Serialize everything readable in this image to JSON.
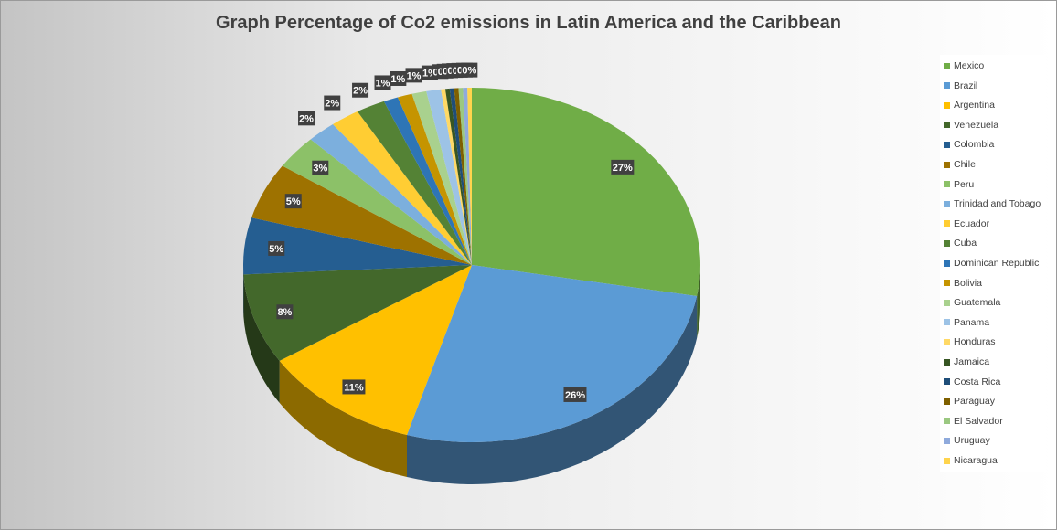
{
  "chart_data": {
    "type": "pie",
    "title": "Graph Percentage of Co2 emissions in Latin America and the Caribbean",
    "legend_position": "right",
    "categories": [
      "Mexico",
      "Brazil",
      "Argentina",
      "Venezuela",
      "Colombia",
      "Chile",
      "Peru",
      "Trinidad and Tobago",
      "Ecuador",
      "Cuba",
      "Dominican Republic",
      "Bolivia",
      "Guatemala",
      "Panama",
      "Honduras",
      "Jamaica",
      "Costa Rica",
      "Paraguay",
      "El Salvador",
      "Uruguay",
      "Nicaragua"
    ],
    "values": [
      27,
      26,
      11,
      8,
      5,
      5,
      3,
      2,
      2,
      2,
      1,
      1,
      1,
      1,
      0,
      0,
      0,
      0,
      0,
      0,
      0
    ],
    "data_labels": [
      "27%",
      "26%",
      "11%",
      "8%",
      "5%",
      "5%",
      "3%",
      "2%",
      "2%",
      "2%",
      "1%",
      "1%",
      "1%",
      "1%",
      "0%",
      "0%",
      "0%",
      "0%",
      "0%",
      "0%",
      "0%"
    ],
    "colors": [
      "#70ad47",
      "#5b9bd5",
      "#ffc000",
      "#43682b",
      "#255e91",
      "#9e7200",
      "#8cc168",
      "#7cafdd",
      "#ffcd33",
      "#548235",
      "#2e75b6",
      "#c59400",
      "#a9d18e",
      "#9dc3e6",
      "#ffd966",
      "#375623",
      "#1f4e79",
      "#7f6000",
      "#9bc881",
      "#8faadc",
      "#ffd44d"
    ]
  }
}
